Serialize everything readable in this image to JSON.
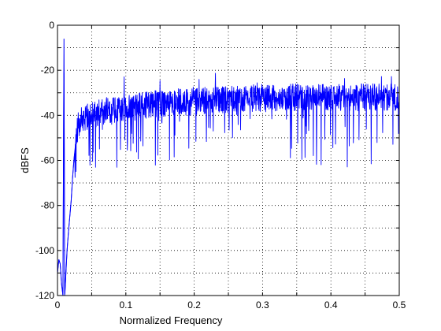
{
  "chart_data": {
    "type": "line",
    "title": "",
    "xlabel": "Normalized Frequency",
    "ylabel": "dBFS",
    "xlim": [
      0,
      0.5
    ],
    "ylim": [
      -120,
      0
    ],
    "xticks": [
      0,
      0.05,
      0.1,
      0.15,
      0.2,
      0.25,
      0.3,
      0.35,
      0.4,
      0.45,
      0.5
    ],
    "xtick_labels": [
      "0",
      "",
      "0.1",
      "",
      "0.2",
      "",
      "0.3",
      "",
      "0.4",
      "",
      "0.5"
    ],
    "yticks": [
      -120,
      -110,
      -100,
      -90,
      -80,
      -70,
      -60,
      -50,
      -40,
      -30,
      -20,
      -10,
      0
    ],
    "ytick_labels": [
      "-120",
      "",
      "-100",
      "",
      "-80",
      "",
      "-60",
      "",
      "-40",
      "",
      "-20",
      "",
      "0"
    ],
    "grid": true,
    "grid_style": "dotted",
    "legend": "none",
    "series": [
      {
        "color": "#0000ff",
        "x": [
          0,
          0.002,
          0.004,
          0.006,
          0.008,
          0.009,
          0.0095,
          0.01,
          0.0105,
          0.011,
          0.012,
          0.014,
          0.016,
          0.018,
          0.02,
          0.022,
          0.024,
          0.026,
          0.028,
          0.03,
          0.033,
          0.036,
          0.04,
          0.045,
          0.05,
          0.06,
          0.07,
          0.08,
          0.09,
          0.1,
          0.11,
          0.12,
          0.13,
          0.14,
          0.15,
          0.16,
          0.17,
          0.18,
          0.19,
          0.2,
          0.21,
          0.22,
          0.23,
          0.24,
          0.25,
          0.26,
          0.27,
          0.28,
          0.29,
          0.3,
          0.31,
          0.32,
          0.33,
          0.34,
          0.35,
          0.36,
          0.37,
          0.38,
          0.39,
          0.4,
          0.41,
          0.42,
          0.43,
          0.44,
          0.45,
          0.46,
          0.47,
          0.48,
          0.49,
          0.5
        ],
        "y": [
          -110,
          -104,
          -106,
          -115,
          -120,
          -40,
          -6,
          -60,
          -120,
          -118,
          -112,
          -100,
          -92,
          -85,
          -78,
          -68,
          -60,
          -54,
          -49,
          -45,
          -43,
          -42,
          -41,
          -40,
          -40,
          -39,
          -38.5,
          -38,
          -37.5,
          -37,
          -36.5,
          -36,
          -35.5,
          -35,
          -35,
          -34.5,
          -34.5,
          -34,
          -34,
          -34,
          -33.5,
          -33.5,
          -33.5,
          -33,
          -33,
          -33,
          -33,
          -33,
          -32.5,
          -32.5,
          -32.5,
          -32.5,
          -32.5,
          -32,
          -32,
          -32,
          -32,
          -32,
          -32,
          -32,
          -32,
          -32,
          -32,
          -32,
          -32,
          -32,
          -32,
          -32,
          -32,
          -32
        ],
        "noise_band_db": 6
      }
    ]
  }
}
